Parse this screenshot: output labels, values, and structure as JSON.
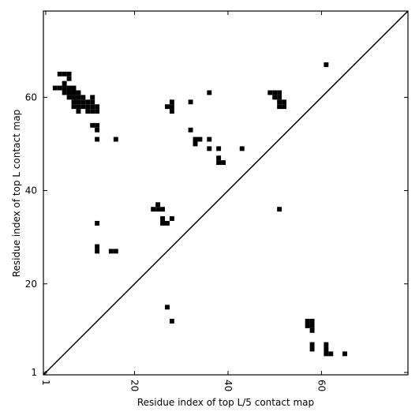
{
  "chart_data": {
    "type": "scatter",
    "xlabel": "Residue index of top L/5 contact map",
    "ylabel": "Residue index of top L contact map",
    "xlim": [
      0.5,
      78.5
    ],
    "ylim": [
      0.5,
      78.5
    ],
    "xticks": [
      1,
      20,
      40,
      60
    ],
    "yticks": [
      1,
      20,
      40,
      60
    ],
    "color": "#000000",
    "x": [
      4,
      5,
      6,
      6,
      5,
      3,
      4,
      5,
      6,
      7,
      5,
      6,
      7,
      8,
      6,
      7,
      8,
      9,
      11,
      7,
      8,
      9,
      10,
      11,
      7,
      8,
      9,
      10,
      11,
      12,
      8,
      10,
      11,
      12,
      11,
      12,
      12,
      12,
      16,
      28,
      27,
      28,
      28,
      32,
      36,
      32,
      33,
      34,
      33,
      36,
      36,
      38,
      38,
      38,
      39,
      43,
      49,
      50,
      51,
      50,
      51,
      51,
      52,
      51,
      52,
      61,
      51,
      25,
      24,
      25,
      26,
      26,
      26,
      27,
      28,
      12,
      12,
      12,
      15,
      16,
      27,
      28,
      57,
      58,
      57,
      58,
      58,
      58,
      58,
      61,
      61,
      61,
      62,
      65
    ],
    "y": [
      65,
      65,
      65,
      64,
      63,
      62,
      62,
      62,
      62,
      62,
      61,
      61,
      61,
      61,
      60,
      60,
      60,
      60,
      60,
      59,
      59,
      59,
      59,
      59,
      58,
      58,
      58,
      58,
      58,
      58,
      57,
      57,
      57,
      57,
      54,
      54,
      53,
      51,
      51,
      59,
      58,
      58,
      57,
      59,
      61,
      53,
      51,
      51,
      50,
      51,
      49,
      49,
      47,
      46,
      46,
      49,
      61,
      61,
      61,
      60,
      60,
      59,
      59,
      58,
      58,
      67,
      36,
      37,
      36,
      36,
      36,
      34,
      33,
      33,
      34,
      33,
      28,
      27,
      27,
      27,
      15,
      12,
      12,
      12,
      11,
      11,
      10,
      7,
      6,
      7,
      6,
      5,
      5,
      5
    ]
  }
}
